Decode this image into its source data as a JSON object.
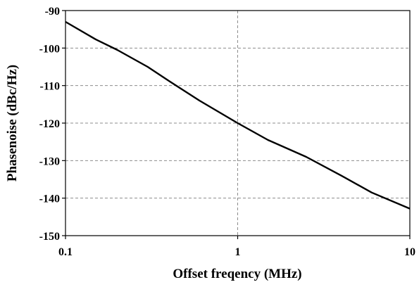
{
  "chart_data": {
    "type": "line",
    "title": "",
    "xlabel": "Offset freqency (MHz)",
    "ylabel": "Phasenoise (dBc/Hz)",
    "x_scale": "log",
    "xlim": [
      0.1,
      10
    ],
    "ylim": [
      -150,
      -90
    ],
    "x_ticks": [
      0.1,
      1,
      10
    ],
    "x_tick_labels": [
      "0.1",
      "1",
      "10"
    ],
    "y_ticks": [
      -90,
      -100,
      -110,
      -120,
      -130,
      -140,
      -150
    ],
    "y_tick_labels": [
      "-90",
      "-100",
      "-110",
      "-120",
      "-130",
      "-140",
      "-150"
    ],
    "grid": true,
    "legend": "none",
    "series": [
      {
        "x": [
          0.1,
          0.15,
          0.2,
          0.3,
          0.4,
          0.6,
          1,
          1.5,
          2.5,
          4,
          6,
          10
        ],
        "y": [
          -93,
          -97.7,
          -100.5,
          -105,
          -108.8,
          -114,
          -120,
          -124.5,
          -129,
          -134,
          -138.5,
          -142.8
        ]
      }
    ]
  }
}
